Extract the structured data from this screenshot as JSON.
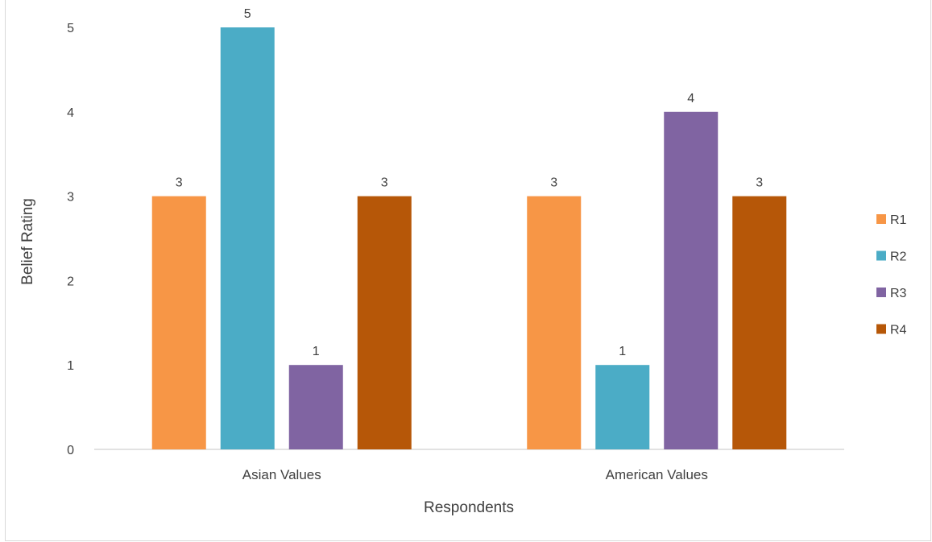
{
  "chart_data": {
    "type": "bar",
    "title": "",
    "xlabel": "Respondents",
    "ylabel": "Belief Rating",
    "categories": [
      "Asian Values",
      "American Values"
    ],
    "series": [
      {
        "name": "R1",
        "values": [
          3,
          3
        ],
        "color": "#f79646"
      },
      {
        "name": "R2",
        "values": [
          5,
          1
        ],
        "color": "#4bacc6"
      },
      {
        "name": "R3",
        "values": [
          1,
          4
        ],
        "color": "#8064a2"
      },
      {
        "name": "R4",
        "values": [
          3,
          3
        ],
        "color": "#b65708"
      }
    ],
    "ylim": [
      0,
      5
    ],
    "yticks": [
      "0",
      "1",
      "2",
      "3",
      "4",
      "5"
    ],
    "grid": false,
    "legend_position": "right",
    "data_labels": true
  }
}
